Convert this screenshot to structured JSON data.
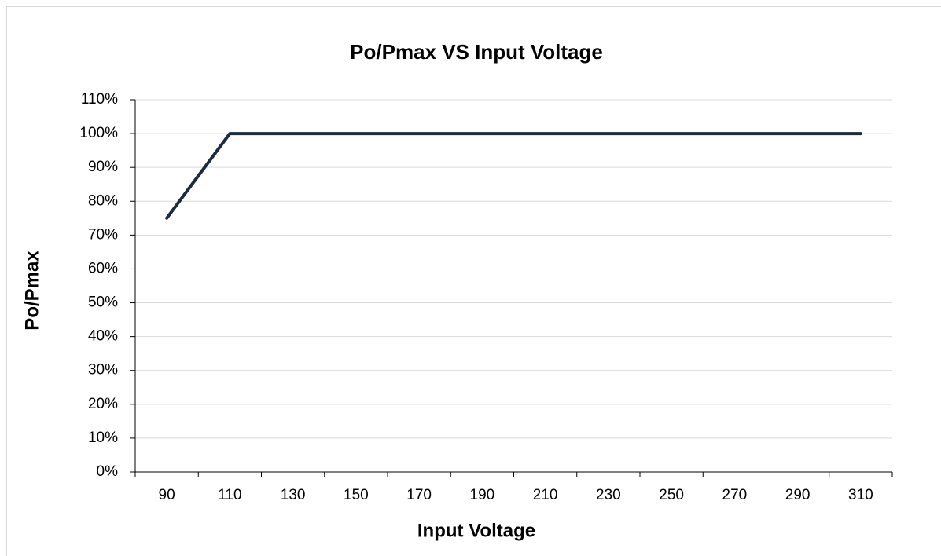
{
  "chart_data": {
    "type": "line",
    "title": "Po/Pmax  VS  Input Voltage",
    "xlabel": "Input Voltage",
    "ylabel": "Po/Pmax",
    "categories": [
      "90",
      "110",
      "130",
      "150",
      "170",
      "190",
      "210",
      "230",
      "250",
      "270",
      "290",
      "310"
    ],
    "series": [
      {
        "name": "Po/Pmax",
        "color": "#1c2b3f",
        "values": [
          75,
          100,
          100,
          100,
          100,
          100,
          100,
          100,
          100,
          100,
          100,
          100
        ]
      }
    ],
    "ylim": [
      0,
      110
    ],
    "yticks": [
      {
        "value": 0,
        "label": "0%"
      },
      {
        "value": 10,
        "label": "10%"
      },
      {
        "value": 20,
        "label": "20%"
      },
      {
        "value": 30,
        "label": "30%"
      },
      {
        "value": 40,
        "label": "40%"
      },
      {
        "value": 50,
        "label": "50%"
      },
      {
        "value": 60,
        "label": "60%"
      },
      {
        "value": 70,
        "label": "70%"
      },
      {
        "value": 80,
        "label": "80%"
      },
      {
        "value": 90,
        "label": "90%"
      },
      {
        "value": 100,
        "label": "100%"
      },
      {
        "value": 110,
        "label": "110%"
      }
    ],
    "grid": true
  }
}
